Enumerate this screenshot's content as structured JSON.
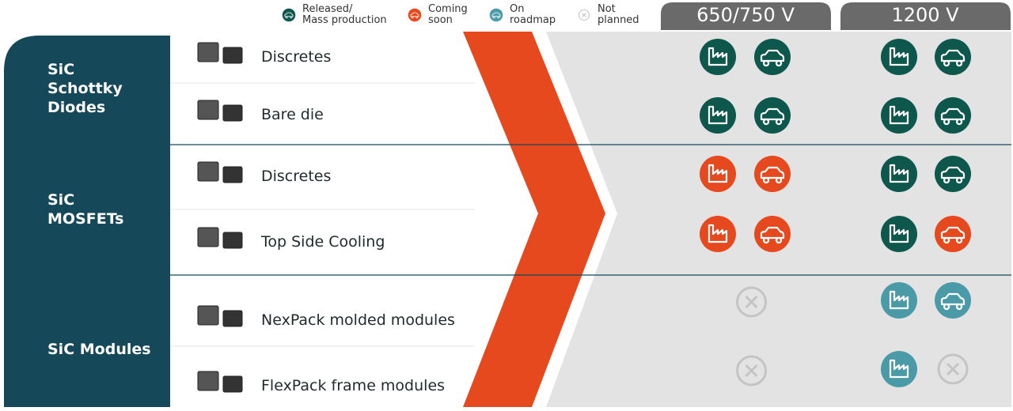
{
  "legend": [
    {
      "label": "Released/\nMass production",
      "color": "#0d574c"
    },
    {
      "label": "Coming\nsoon",
      "color": "#e5491d"
    },
    {
      "label": "On\nroadmap",
      "color": "#4a9aa8"
    },
    {
      "label": "Not\nplanned",
      "color": "#c4c4c4"
    }
  ],
  "columns": [
    "650/750 V",
    "1200 V"
  ],
  "groups": [
    {
      "label": "SiC\nSchottky\nDiodes",
      "rows": [
        {
          "label": "Discretes",
          "cells": [
            [
              0,
              0
            ],
            [
              0,
              0
            ]
          ]
        },
        {
          "label": "Bare die",
          "cells": [
            [
              0,
              0
            ],
            [
              0,
              0
            ]
          ]
        }
      ]
    },
    {
      "label": "SiC\nMOSFETs",
      "rows": [
        {
          "label": "Discretes",
          "cells": [
            [
              1,
              1
            ],
            [
              0,
              0
            ]
          ]
        },
        {
          "label": "Top Side Cooling",
          "cells": [
            [
              1,
              1
            ],
            [
              0,
              1
            ]
          ]
        }
      ]
    },
    {
      "label": "SiC Modules",
      "rows": [
        {
          "label": "NexPack molded modules",
          "cells": [
            [
              3
            ],
            [
              2,
              2
            ]
          ]
        },
        {
          "label": "FlexPack frame modules",
          "cells": [
            [
              3
            ],
            [
              2,
              3
            ]
          ]
        }
      ]
    }
  ]
}
